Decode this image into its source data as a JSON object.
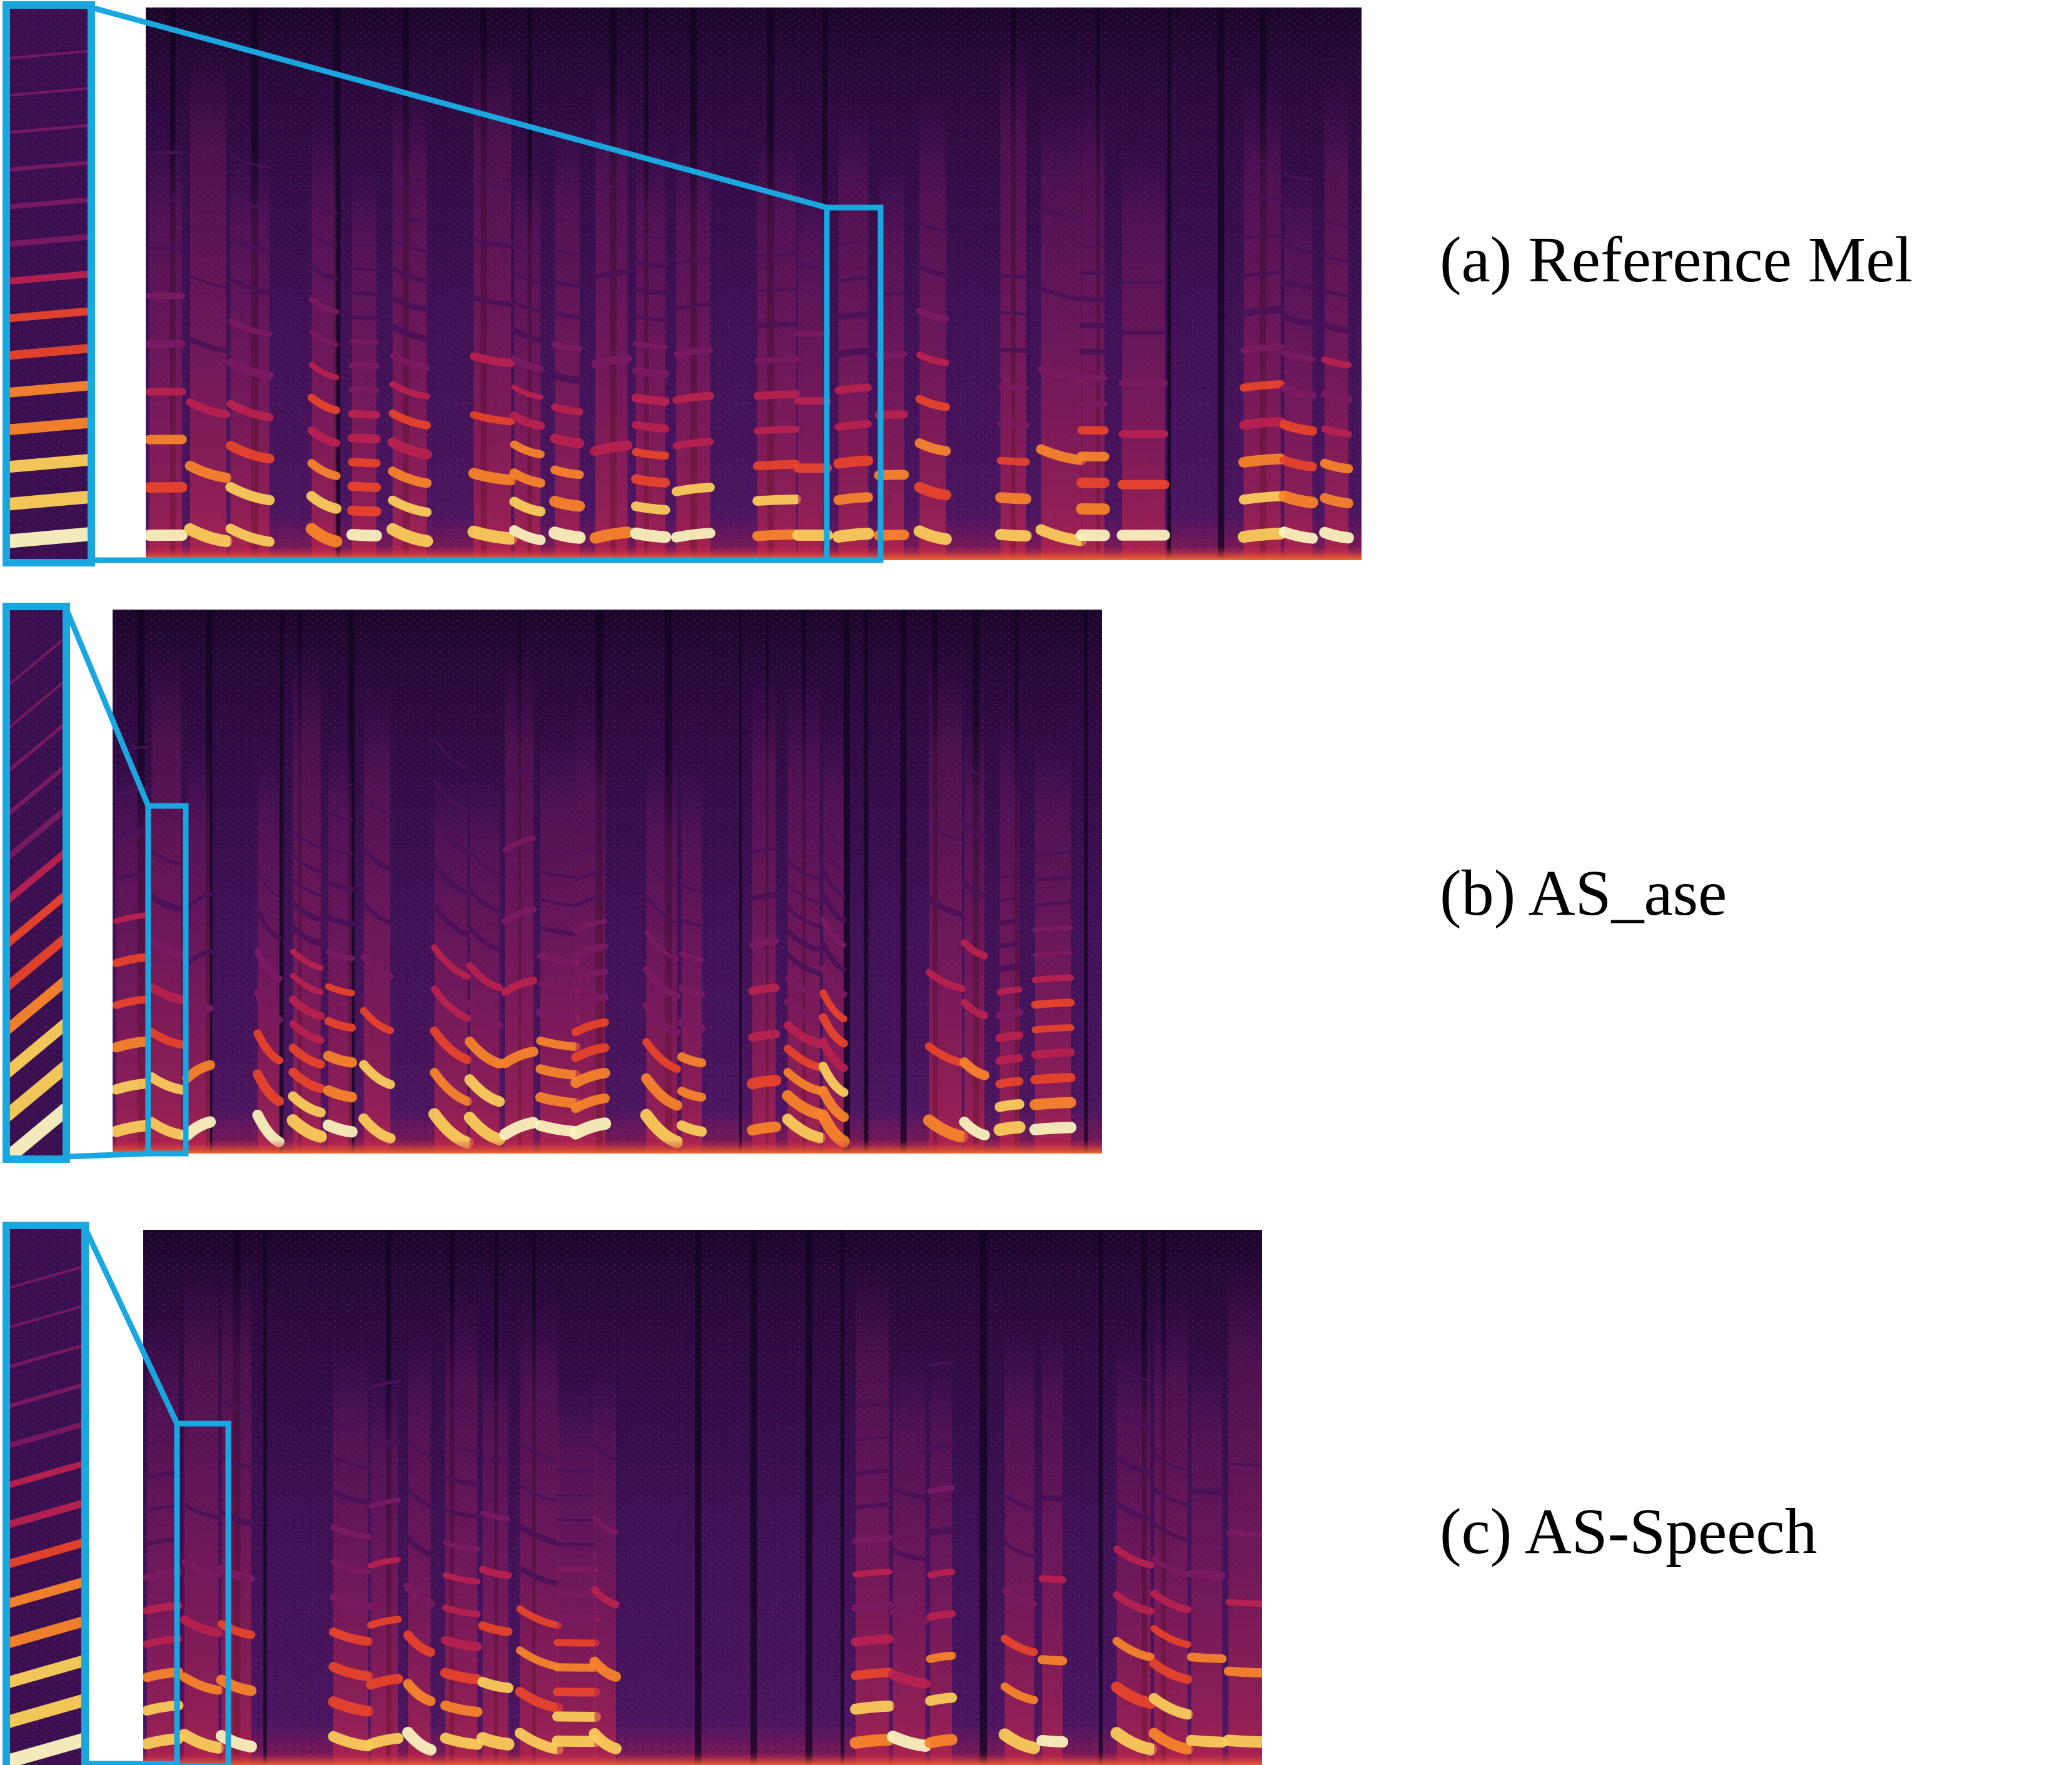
{
  "figure": {
    "panels": [
      {
        "id": "a",
        "label": "(a) Reference Mel"
      },
      {
        "id": "b",
        "label": "(b) AS_ase"
      },
      {
        "id": "c",
        "label": "(c) AS-Speech"
      }
    ]
  },
  "colors": {
    "background": "#ffffff",
    "highlight_box": "#1aa7e0",
    "colormap": [
      "#0d0221",
      "#2a0b3d",
      "#4a1157",
      "#7a1a62",
      "#b8224f",
      "#e8442a",
      "#f9862a",
      "#fcd05a",
      "#fcf7c0"
    ]
  }
}
